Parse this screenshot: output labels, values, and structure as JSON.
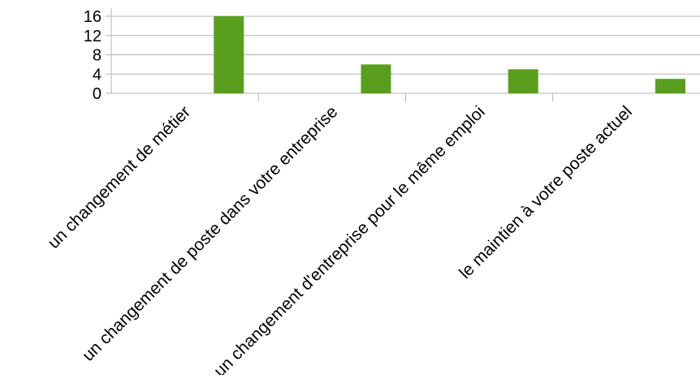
{
  "chart_data": {
    "type": "bar",
    "categories": [
      "un changement de métier",
      "un changement de poste dans votre entreprise",
      "un changement d'entreprise pour le même emploi",
      "le maintien à votre poste actuel"
    ],
    "values": [
      16,
      6,
      5,
      3
    ],
    "title": "",
    "xlabel": "",
    "ylabel": "",
    "ylim": [
      0,
      16
    ],
    "yticks": [
      "0",
      "4",
      "8",
      "12",
      "16"
    ],
    "grid": true,
    "legend": "none",
    "colors": {
      "bar": "#5a9e1e",
      "grid": "#b3b3b3",
      "axis": "#b3b3b3"
    }
  }
}
